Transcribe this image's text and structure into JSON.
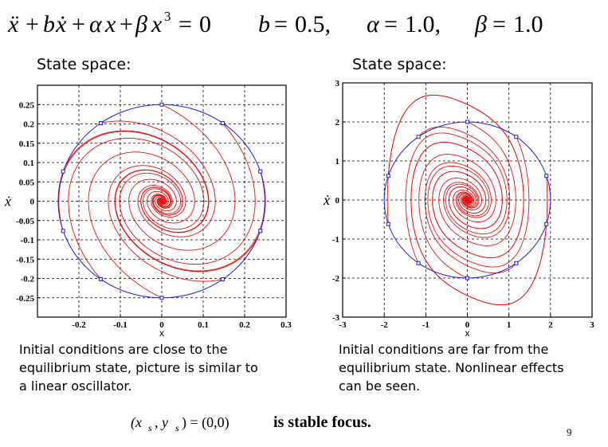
{
  "equation": {
    "ode": [
      "ẍ",
      "+",
      "b",
      "ẋ",
      "+",
      "α",
      "x",
      "+",
      "β",
      "x",
      "3",
      "=",
      "0"
    ],
    "params": [
      {
        "name": "b",
        "eq": "=",
        "value": "0.5,"
      },
      {
        "name": "α",
        "eq": "=",
        "value": "1.0,"
      },
      {
        "name": "β",
        "eq": "=",
        "value": "1.0"
      }
    ]
  },
  "left_panel": {
    "label": "State space:",
    "caption": [
      "Initial conditions are close to the",
      "equilibrium state, picture is similar to",
      "a linear oscillator."
    ]
  },
  "right_panel": {
    "label": "State space:",
    "caption": [
      "Initial conditions are far from the",
      "equilibrium state. Nonlinear effects",
      "can be seen."
    ]
  },
  "conclusion": {
    "math": "(x",
    "sub": "s",
    "mid": ", y",
    "tail": ") = (0,0)",
    "text": "is stable focus."
  },
  "page_number": "9",
  "colors": {
    "trajectory": "#e8110f",
    "circle": "#1f1fdd",
    "marker": "#1f1fdd",
    "grid": "#000000"
  },
  "chart_data": [
    {
      "type": "line",
      "title": "",
      "xlabel": "x",
      "ylabel": "ẋ",
      "xlim": [
        -0.3,
        0.3
      ],
      "ylim": [
        -0.3,
        0.3
      ],
      "xticks": [
        "-0.2",
        "-0.1",
        "0",
        "0.1",
        "0.2",
        "0.3"
      ],
      "xtick_values": [
        -0.2,
        -0.1,
        0,
        0.1,
        0.2,
        0.3
      ],
      "yticks": [
        "0.25",
        "0.2",
        "0.15",
        "0.1",
        "0.05",
        "0",
        "-0.05",
        "-0.1",
        "-0.15",
        "-0.2",
        "-0.25"
      ],
      "ytick_values": [
        0.25,
        0.2,
        0.15,
        0.1,
        0.05,
        0,
        -0.05,
        -0.1,
        -0.15,
        -0.2,
        -0.25
      ],
      "grid": true,
      "circle_radius": 0.25,
      "initial_conditions": [
        [
          0,
          0.25
        ],
        [
          0.147,
          0.202
        ],
        [
          0.238,
          0.077
        ],
        [
          0.238,
          -0.077
        ],
        [
          0.147,
          -0.202
        ],
        [
          0,
          -0.25
        ],
        [
          -0.147,
          -0.202
        ],
        [
          -0.238,
          -0.077
        ],
        [
          -0.238,
          0.077
        ],
        [
          -0.147,
          0.202
        ]
      ],
      "params": {
        "b": 0.5,
        "alpha": 1.0,
        "beta": 1.0
      }
    },
    {
      "type": "line",
      "title": "",
      "xlabel": "x",
      "ylabel": "ẋ",
      "xlim": [
        -3,
        3
      ],
      "ylim": [
        -3,
        3
      ],
      "xticks": [
        "-3",
        "-2",
        "-1",
        "0",
        "1",
        "2",
        "3"
      ],
      "xtick_values": [
        -3,
        -2,
        -1,
        0,
        1,
        2,
        3
      ],
      "yticks": [
        "3",
        "2",
        "1",
        "0",
        "-1",
        "-2",
        "-3"
      ],
      "ytick_values": [
        3,
        2,
        1,
        0,
        -1,
        -2,
        -3
      ],
      "grid": true,
      "circle_radius": 2.0,
      "initial_conditions": [
        [
          0,
          2
        ],
        [
          1.176,
          1.618
        ],
        [
          1.902,
          0.618
        ],
        [
          1.902,
          -0.618
        ],
        [
          1.176,
          -1.618
        ],
        [
          0,
          -2
        ],
        [
          -1.176,
          -1.618
        ],
        [
          -1.902,
          -0.618
        ],
        [
          -1.902,
          0.618
        ],
        [
          -1.176,
          1.618
        ]
      ],
      "params": {
        "b": 0.5,
        "alpha": 1.0,
        "beta": 1.0
      }
    }
  ]
}
